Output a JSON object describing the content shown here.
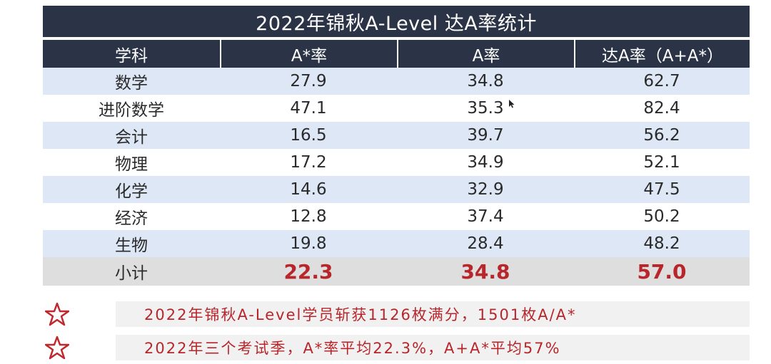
{
  "title": "2022年锦秋A-Level 达A率统计",
  "header": {
    "subject": "学科",
    "a_star_rate": "A*率",
    "a_rate": "A率",
    "total_rate": "达A率（A+A*）"
  },
  "rows": [
    {
      "subject": "数学",
      "a_star": "27.9",
      "a": "34.8",
      "total": "62.7"
    },
    {
      "subject": "进阶数学",
      "a_star": "47.1",
      "a": "35.3",
      "total": "82.4"
    },
    {
      "subject": "会计",
      "a_star": "16.5",
      "a": "39.7",
      "total": "56.2"
    },
    {
      "subject": "物理",
      "a_star": "17.2",
      "a": "34.9",
      "total": "52.1"
    },
    {
      "subject": "化学",
      "a_star": "14.6",
      "a": "32.9",
      "total": "47.5"
    },
    {
      "subject": "经济",
      "a_star": "12.8",
      "a": "37.4",
      "total": "50.2"
    },
    {
      "subject": "生物",
      "a_star": "19.8",
      "a": "28.4",
      "total": "48.2"
    }
  ],
  "subtotal": {
    "label": "小计",
    "a_star": "22.3",
    "a": "34.8",
    "total": "57.0"
  },
  "notes": [
    "2022年锦秋A-Level学员斩获1126枚满分，1501枚A/A*",
    "2022年三个考试季，A*率平均22.3%，A+A*平均57%"
  ],
  "colors": {
    "header_bg": "#2b3346",
    "band_bg": "#dde7f5",
    "subtotal_bg": "#dedede",
    "accent_red": "#b8252a"
  },
  "icons": {
    "note_marker": "star-outline-icon",
    "pointer": "mouse-cursor-icon"
  }
}
